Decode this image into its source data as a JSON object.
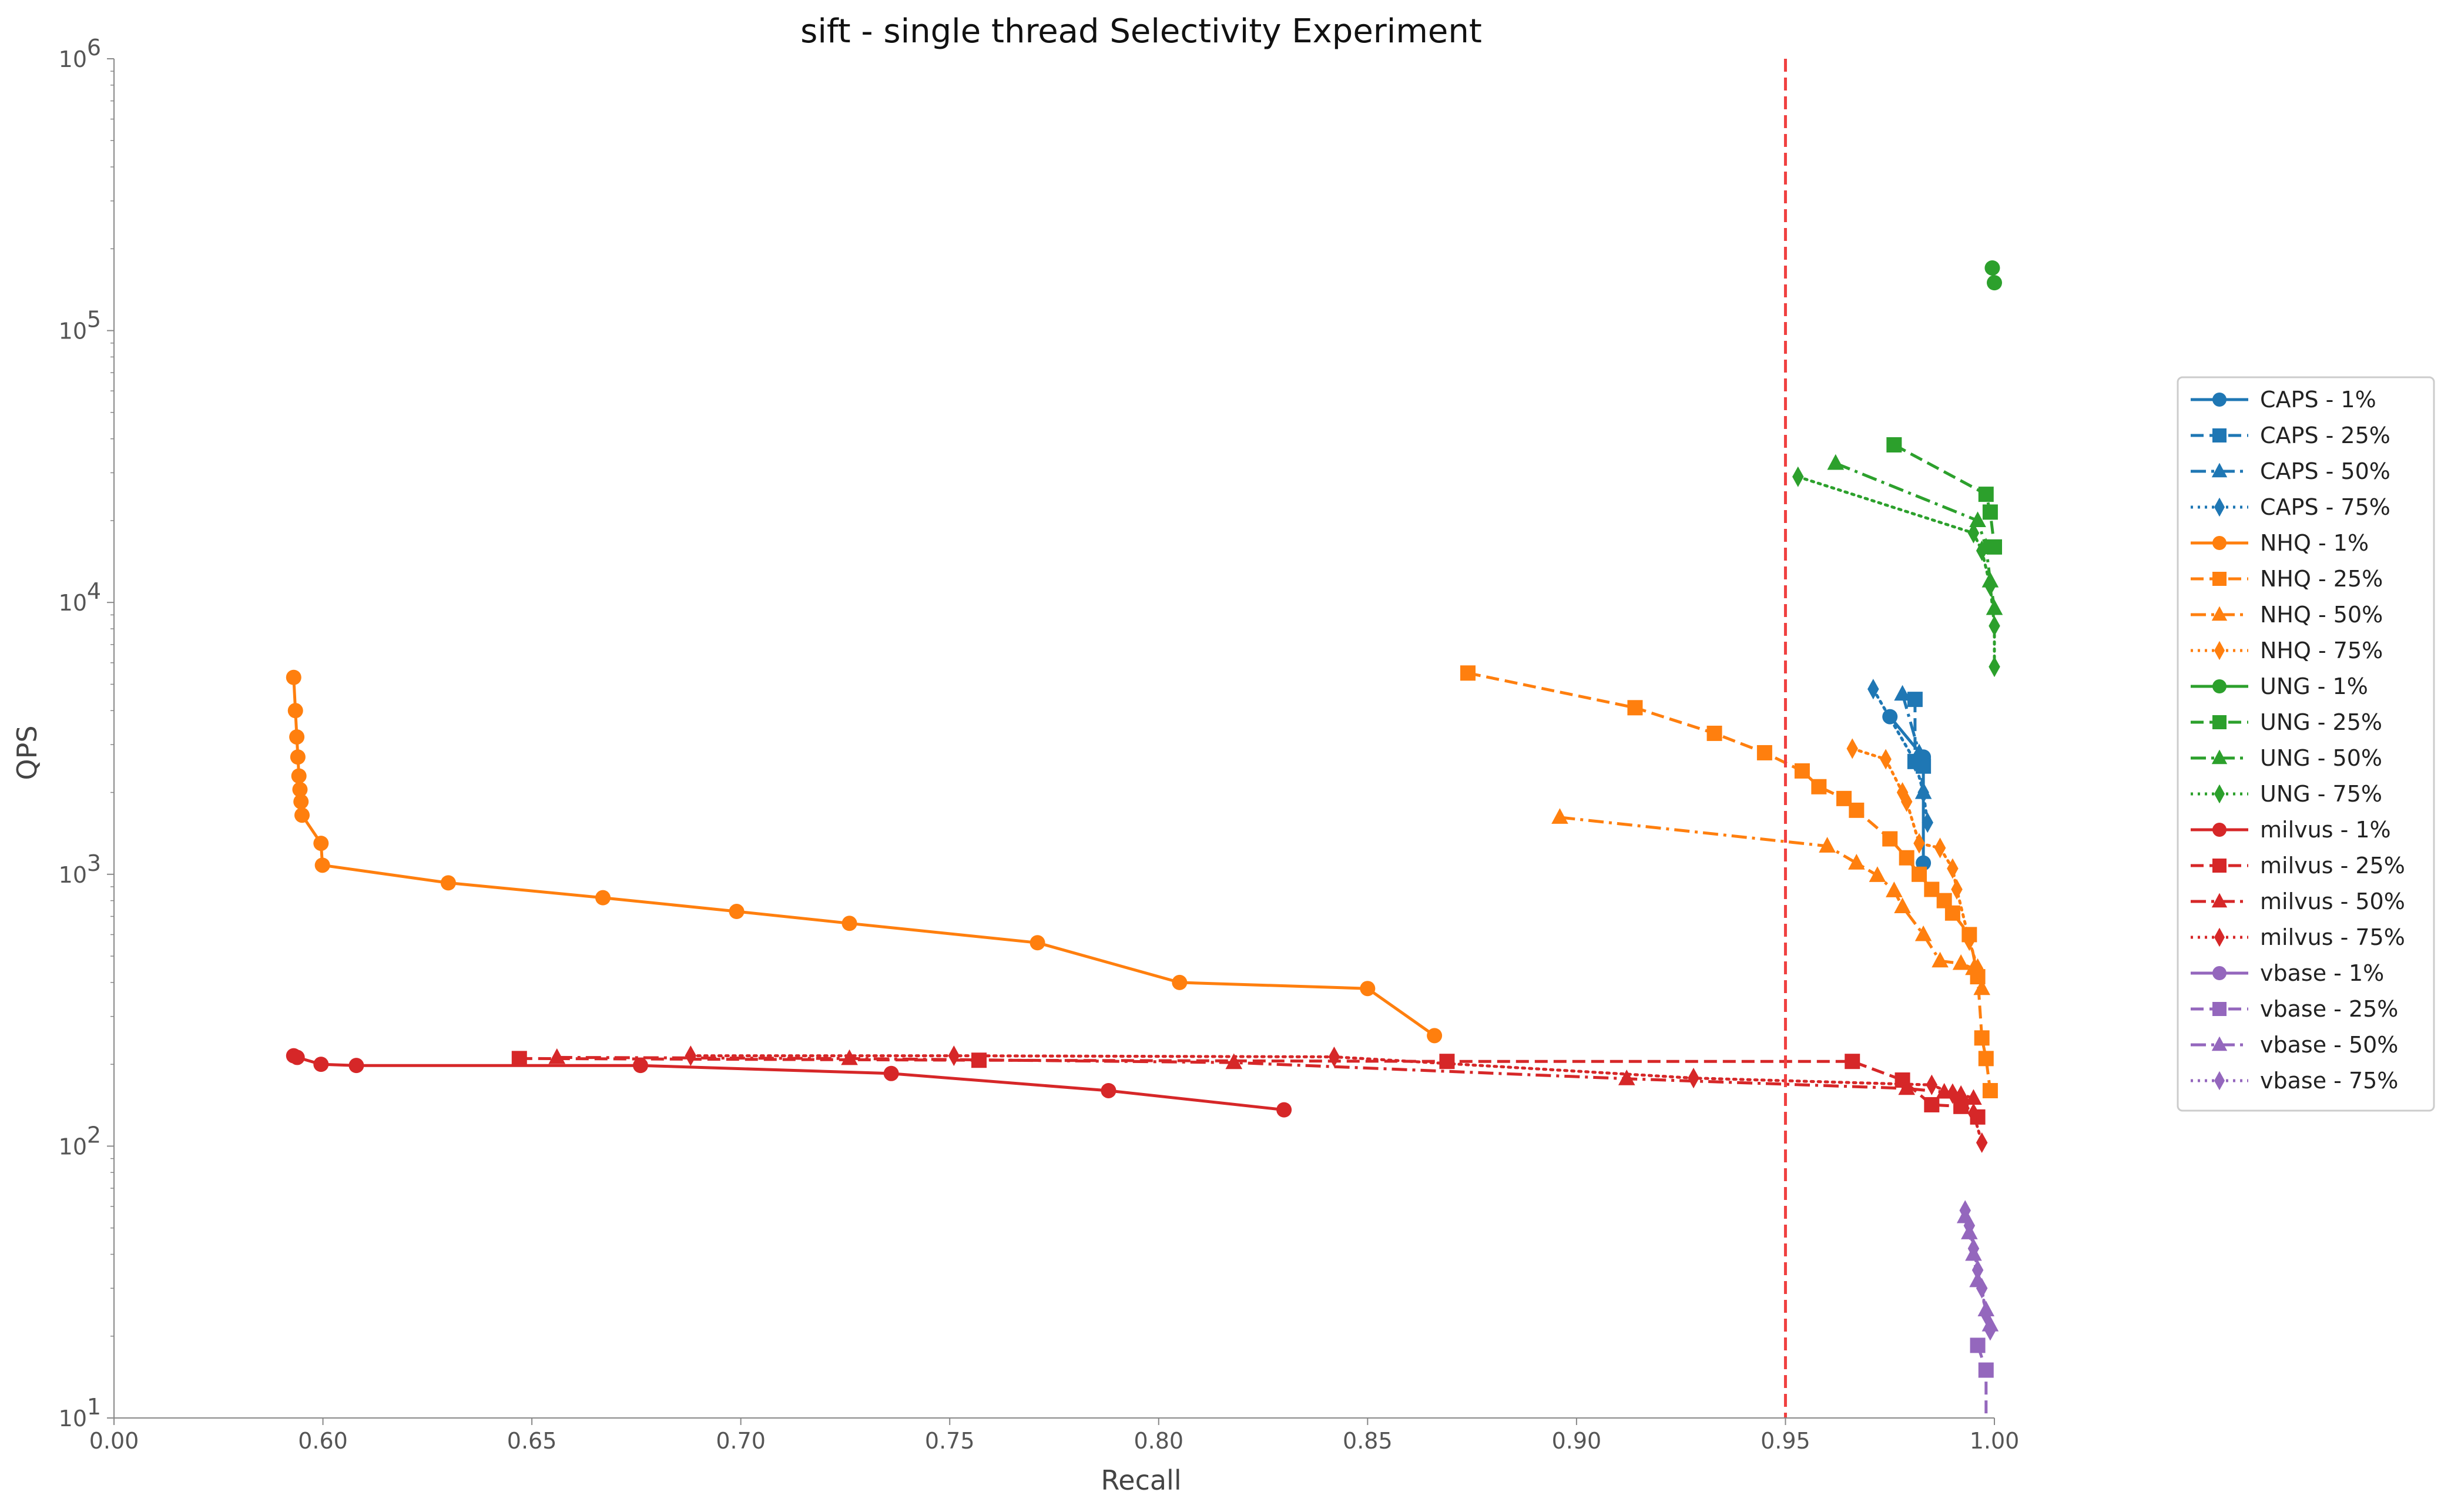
{
  "chart_data": {
    "type": "line",
    "title": "sift - single thread Selectivity Experiment",
    "xlabel": "Recall",
    "ylabel": "QPS",
    "x_scale": "broken-linear",
    "x_ticks": [
      0.0,
      0.6,
      0.65,
      0.7,
      0.75,
      0.8,
      0.85,
      0.9,
      0.95,
      1.0
    ],
    "x_tick_labels": [
      "0.00",
      "0.60",
      "0.65",
      "0.70",
      "0.75",
      "0.80",
      "0.85",
      "0.90",
      "0.95",
      "1.00"
    ],
    "y_scale": "log",
    "ylim": [
      10,
      1000000
    ],
    "y_ticks": [
      10,
      100,
      1000,
      10000,
      100000,
      1000000
    ],
    "y_tick_labels": [
      "10",
      "10",
      "10",
      "10",
      "10",
      "10"
    ],
    "y_tick_exponents": [
      "1",
      "2",
      "3",
      "4",
      "5",
      "6"
    ],
    "grid": false,
    "legend_position": "right",
    "reference_line": {
      "x": 0.95,
      "color": "#f04040",
      "style": "dashed"
    },
    "colors": {
      "CAPS": "#1f77b4",
      "NHQ": "#ff7f0e",
      "UNG": "#2ca02c",
      "milvus": "#d62728",
      "vbase": "#9467bd"
    },
    "series": [
      {
        "name": "CAPS - 1%",
        "method": "CAPS",
        "marker": "circle",
        "dash": "solid",
        "points": [
          [
            0.975,
            3800
          ],
          [
            0.983,
            2700
          ],
          [
            0.983,
            1100
          ]
        ]
      },
      {
        "name": "CAPS - 25%",
        "method": "CAPS",
        "marker": "square",
        "dash": "dashed",
        "points": [
          [
            0.981,
            4400
          ],
          [
            0.981,
            2600
          ],
          [
            0.983,
            2500
          ]
        ]
      },
      {
        "name": "CAPS - 50%",
        "method": "CAPS",
        "marker": "triangle",
        "dash": "dashdot",
        "points": [
          [
            0.978,
            4600
          ],
          [
            0.982,
            2800
          ],
          [
            0.983,
            2000
          ]
        ]
      },
      {
        "name": "CAPS - 75%",
        "method": "CAPS",
        "marker": "diamond",
        "dash": "dotted",
        "points": [
          [
            0.971,
            4800
          ],
          [
            0.981,
            2600
          ],
          [
            0.983,
            2000
          ],
          [
            0.984,
            1550
          ]
        ]
      },
      {
        "name": "NHQ - 1%",
        "method": "NHQ",
        "marker": "circle",
        "dash": "solid",
        "points": [
          [
            0.516,
            5300
          ],
          [
            0.521,
            4000
          ],
          [
            0.525,
            3200
          ],
          [
            0.528,
            2700
          ],
          [
            0.531,
            2300
          ],
          [
            0.534,
            2050
          ],
          [
            0.537,
            1850
          ],
          [
            0.54,
            1650
          ],
          [
            0.5945,
            1300
          ],
          [
            0.5985,
            1080
          ],
          [
            0.63,
            930
          ],
          [
            0.667,
            820
          ],
          [
            0.699,
            730
          ],
          [
            0.726,
            660
          ],
          [
            0.771,
            560
          ],
          [
            0.805,
            400
          ],
          [
            0.85,
            380
          ],
          [
            0.866,
            255
          ]
        ]
      },
      {
        "name": "NHQ - 25%",
        "method": "NHQ",
        "marker": "square",
        "dash": "dashed",
        "points": [
          [
            0.874,
            5500
          ],
          [
            0.914,
            4100
          ],
          [
            0.933,
            3300
          ],
          [
            0.945,
            2800
          ],
          [
            0.954,
            2400
          ],
          [
            0.958,
            2100
          ],
          [
            0.964,
            1900
          ],
          [
            0.967,
            1720
          ],
          [
            0.975,
            1350
          ],
          [
            0.979,
            1150
          ],
          [
            0.982,
            1000
          ],
          [
            0.985,
            880
          ],
          [
            0.988,
            800
          ],
          [
            0.99,
            720
          ],
          [
            0.994,
            600
          ],
          [
            0.996,
            420
          ],
          [
            0.997,
            250
          ],
          [
            0.998,
            210
          ],
          [
            0.999,
            160
          ]
        ]
      },
      {
        "name": "NHQ - 50%",
        "method": "NHQ",
        "marker": "triangle",
        "dash": "dashdot",
        "points": [
          [
            0.896,
            1620
          ],
          [
            0.96,
            1270
          ],
          [
            0.967,
            1100
          ],
          [
            0.972,
            990
          ],
          [
            0.976,
            870
          ],
          [
            0.978,
            760
          ],
          [
            0.983,
            600
          ],
          [
            0.987,
            480
          ],
          [
            0.992,
            470
          ],
          [
            0.995,
            450
          ],
          [
            0.997,
            380
          ]
        ]
      },
      {
        "name": "NHQ - 75%",
        "method": "NHQ",
        "marker": "diamond",
        "dash": "dotted",
        "points": [
          [
            0.966,
            2900
          ],
          [
            0.974,
            2650
          ],
          [
            0.978,
            2000
          ],
          [
            0.979,
            1850
          ],
          [
            0.982,
            1300
          ],
          [
            0.987,
            1250
          ],
          [
            0.99,
            1050
          ],
          [
            0.991,
            880
          ],
          [
            0.994,
            570
          ],
          [
            0.996,
            450
          ]
        ]
      },
      {
        "name": "UNG - 1%",
        "method": "UNG",
        "marker": "circle",
        "dash": "solid",
        "points": [
          [
            0.9995,
            170000
          ],
          [
            1.0,
            150000
          ]
        ]
      },
      {
        "name": "UNG - 25%",
        "method": "UNG",
        "marker": "square",
        "dash": "dashed",
        "points": [
          [
            0.976,
            38000
          ],
          [
            0.998,
            25000
          ],
          [
            0.999,
            21500
          ],
          [
            1.0,
            16000
          ]
        ]
      },
      {
        "name": "UNG - 50%",
        "method": "UNG",
        "marker": "triangle",
        "dash": "dashdot",
        "points": [
          [
            0.962,
            32500
          ],
          [
            0.996,
            20000
          ],
          [
            0.998,
            16000
          ],
          [
            0.999,
            12000
          ],
          [
            1.0,
            9500
          ]
        ]
      },
      {
        "name": "UNG - 75%",
        "method": "UNG",
        "marker": "diamond",
        "dash": "dotted",
        "points": [
          [
            0.953,
            29000
          ],
          [
            0.995,
            18000
          ],
          [
            0.997,
            15500
          ],
          [
            0.999,
            11500
          ],
          [
            1.0,
            8200
          ],
          [
            1.0,
            5800
          ]
        ]
      },
      {
        "name": "milvus - 1%",
        "method": "milvus",
        "marker": "circle",
        "dash": "solid",
        "points": [
          [
            0.516,
            215
          ],
          [
            0.526,
            212
          ],
          [
            0.5945,
            200
          ],
          [
            0.608,
            198
          ],
          [
            0.676,
            198
          ],
          [
            0.736,
            185
          ],
          [
            0.788,
            160
          ],
          [
            0.83,
            136
          ]
        ]
      },
      {
        "name": "milvus - 25%",
        "method": "milvus",
        "marker": "square",
        "dash": "dashed",
        "points": [
          [
            0.647,
            210
          ],
          [
            0.757,
            207
          ],
          [
            0.869,
            205
          ],
          [
            0.966,
            205
          ],
          [
            0.978,
            175
          ],
          [
            0.985,
            142
          ],
          [
            0.992,
            140
          ],
          [
            0.996,
            128
          ]
        ]
      },
      {
        "name": "milvus - 50%",
        "method": "milvus",
        "marker": "triangle",
        "dash": "dashdot",
        "points": [
          [
            0.656,
            212
          ],
          [
            0.726,
            210
          ],
          [
            0.818,
            203
          ],
          [
            0.912,
            177
          ],
          [
            0.979,
            163
          ],
          [
            0.988,
            158
          ],
          [
            0.992,
            155
          ],
          [
            0.995,
            150
          ]
        ]
      },
      {
        "name": "milvus - 75%",
        "method": "milvus",
        "marker": "diamond",
        "dash": "dotted",
        "points": [
          [
            0.688,
            215
          ],
          [
            0.751,
            215
          ],
          [
            0.842,
            213
          ],
          [
            0.928,
            178
          ],
          [
            0.985,
            168
          ],
          [
            0.99,
            156
          ],
          [
            0.995,
            132
          ],
          [
            0.997,
            103
          ]
        ]
      },
      {
        "name": "vbase - 1%",
        "method": "vbase",
        "marker": "circle",
        "dash": "solid",
        "points": []
      },
      {
        "name": "vbase - 25%",
        "method": "vbase",
        "marker": "square",
        "dash": "dashed",
        "points": [
          [
            0.996,
            18.5
          ],
          [
            0.998,
            15
          ],
          [
            0.998,
            10
          ]
        ]
      },
      {
        "name": "vbase - 50%",
        "method": "vbase",
        "marker": "triangle",
        "dash": "dashdot",
        "points": [
          [
            0.993,
            55
          ],
          [
            0.994,
            48
          ],
          [
            0.995,
            40
          ],
          [
            0.996,
            32
          ],
          [
            0.998,
            25
          ],
          [
            0.999,
            22
          ]
        ]
      },
      {
        "name": "vbase - 75%",
        "method": "vbase",
        "marker": "diamond",
        "dash": "dotted",
        "points": [
          [
            0.993,
            58
          ],
          [
            0.994,
            51
          ],
          [
            0.995,
            42
          ],
          [
            0.996,
            35
          ],
          [
            0.997,
            30
          ],
          [
            0.998,
            24
          ],
          [
            0.999,
            21
          ]
        ]
      }
    ]
  }
}
